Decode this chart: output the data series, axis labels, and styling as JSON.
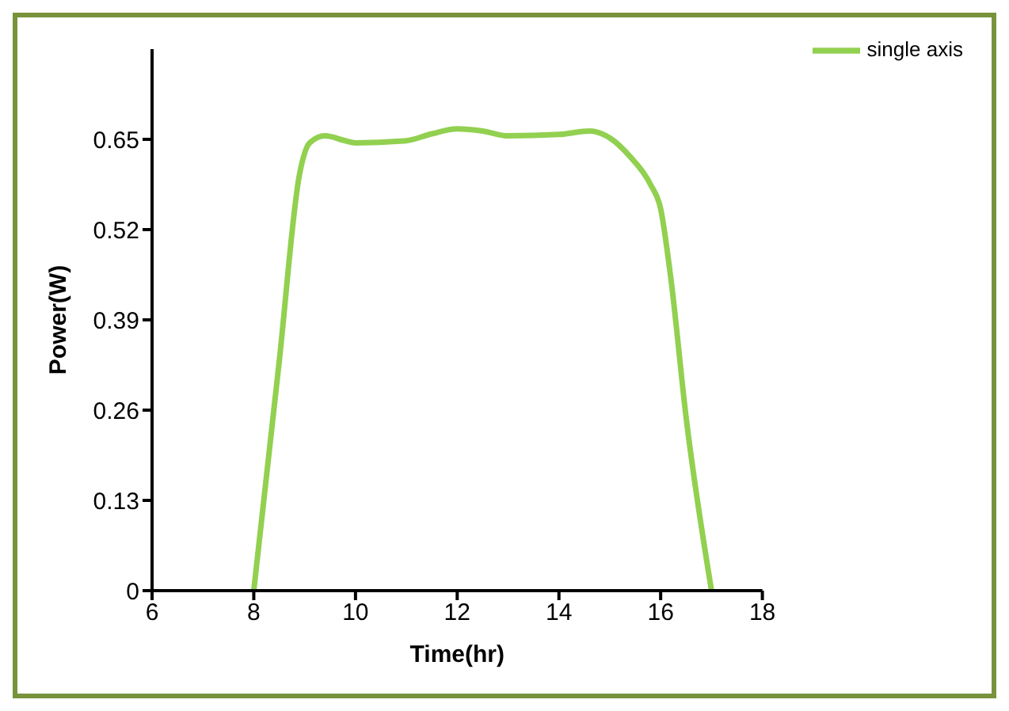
{
  "chart_data": {
    "type": "line",
    "xlabel": "Time(hr)",
    "ylabel": "Power(W)",
    "x": [
      8,
      8.5,
      8.9,
      9.1,
      9.4,
      9.8,
      10,
      11,
      11.5,
      12,
      12.5,
      13,
      14,
      14.6,
      15,
      15.4,
      15.8,
      16,
      16.2,
      16.5,
      17
    ],
    "series": [
      {
        "name": "single axis",
        "color": "#92d050",
        "values": [
          0,
          0.33,
          0.6,
          0.645,
          0.655,
          0.648,
          0.645,
          0.648,
          0.658,
          0.665,
          0.662,
          0.655,
          0.657,
          0.662,
          0.652,
          0.625,
          0.585,
          0.55,
          0.45,
          0.25,
          0
        ]
      }
    ],
    "xlim": [
      6,
      18
    ],
    "xticks": [
      6,
      8,
      10,
      12,
      14,
      16,
      18
    ],
    "ylim": [
      0,
      0.78
    ],
    "yticks": [
      0,
      0.13,
      0.26,
      0.39,
      0.52,
      0.65
    ],
    "grid": false,
    "legend": "top right",
    "marker": "none",
    "line_style": "solid"
  }
}
